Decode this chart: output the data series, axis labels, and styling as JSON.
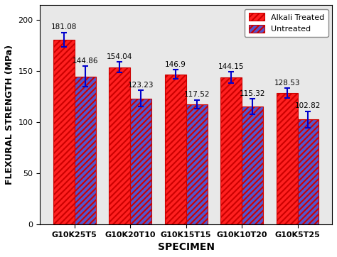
{
  "categories": [
    "G10K25T5",
    "G10K20T10",
    "G10K15T15",
    "G10K10T20",
    "G10K5T25"
  ],
  "alkali_treated": [
    181.08,
    154.04,
    146.9,
    144.15,
    128.53
  ],
  "untreated": [
    144.86,
    123.23,
    117.52,
    115.32,
    102.82
  ],
  "alkali_errors": [
    7.0,
    5.0,
    4.5,
    5.5,
    5.0
  ],
  "untreated_errors": [
    10.0,
    8.0,
    4.5,
    7.5,
    8.0
  ],
  "bar_color_alkali": "#FF2020",
  "bar_color_untreated": "#5555CC",
  "hatch_color_alkali": "#CC0000",
  "hatch_color_untreated": "#FF2020",
  "ylabel": "FLEXURAL STRENGTH (MPa)",
  "xlabel": "SPECIMEN",
  "ylim": [
    0,
    215
  ],
  "yticks": [
    0,
    50,
    100,
    150,
    200
  ],
  "legend_labels": [
    "Alkali Treated",
    "Untreated"
  ],
  "bar_width": 0.38,
  "font_size_labels": 9,
  "font_size_ticks": 8,
  "font_size_values": 7.5,
  "error_color": "#0000CC",
  "bg_color": "#E8E8E8"
}
